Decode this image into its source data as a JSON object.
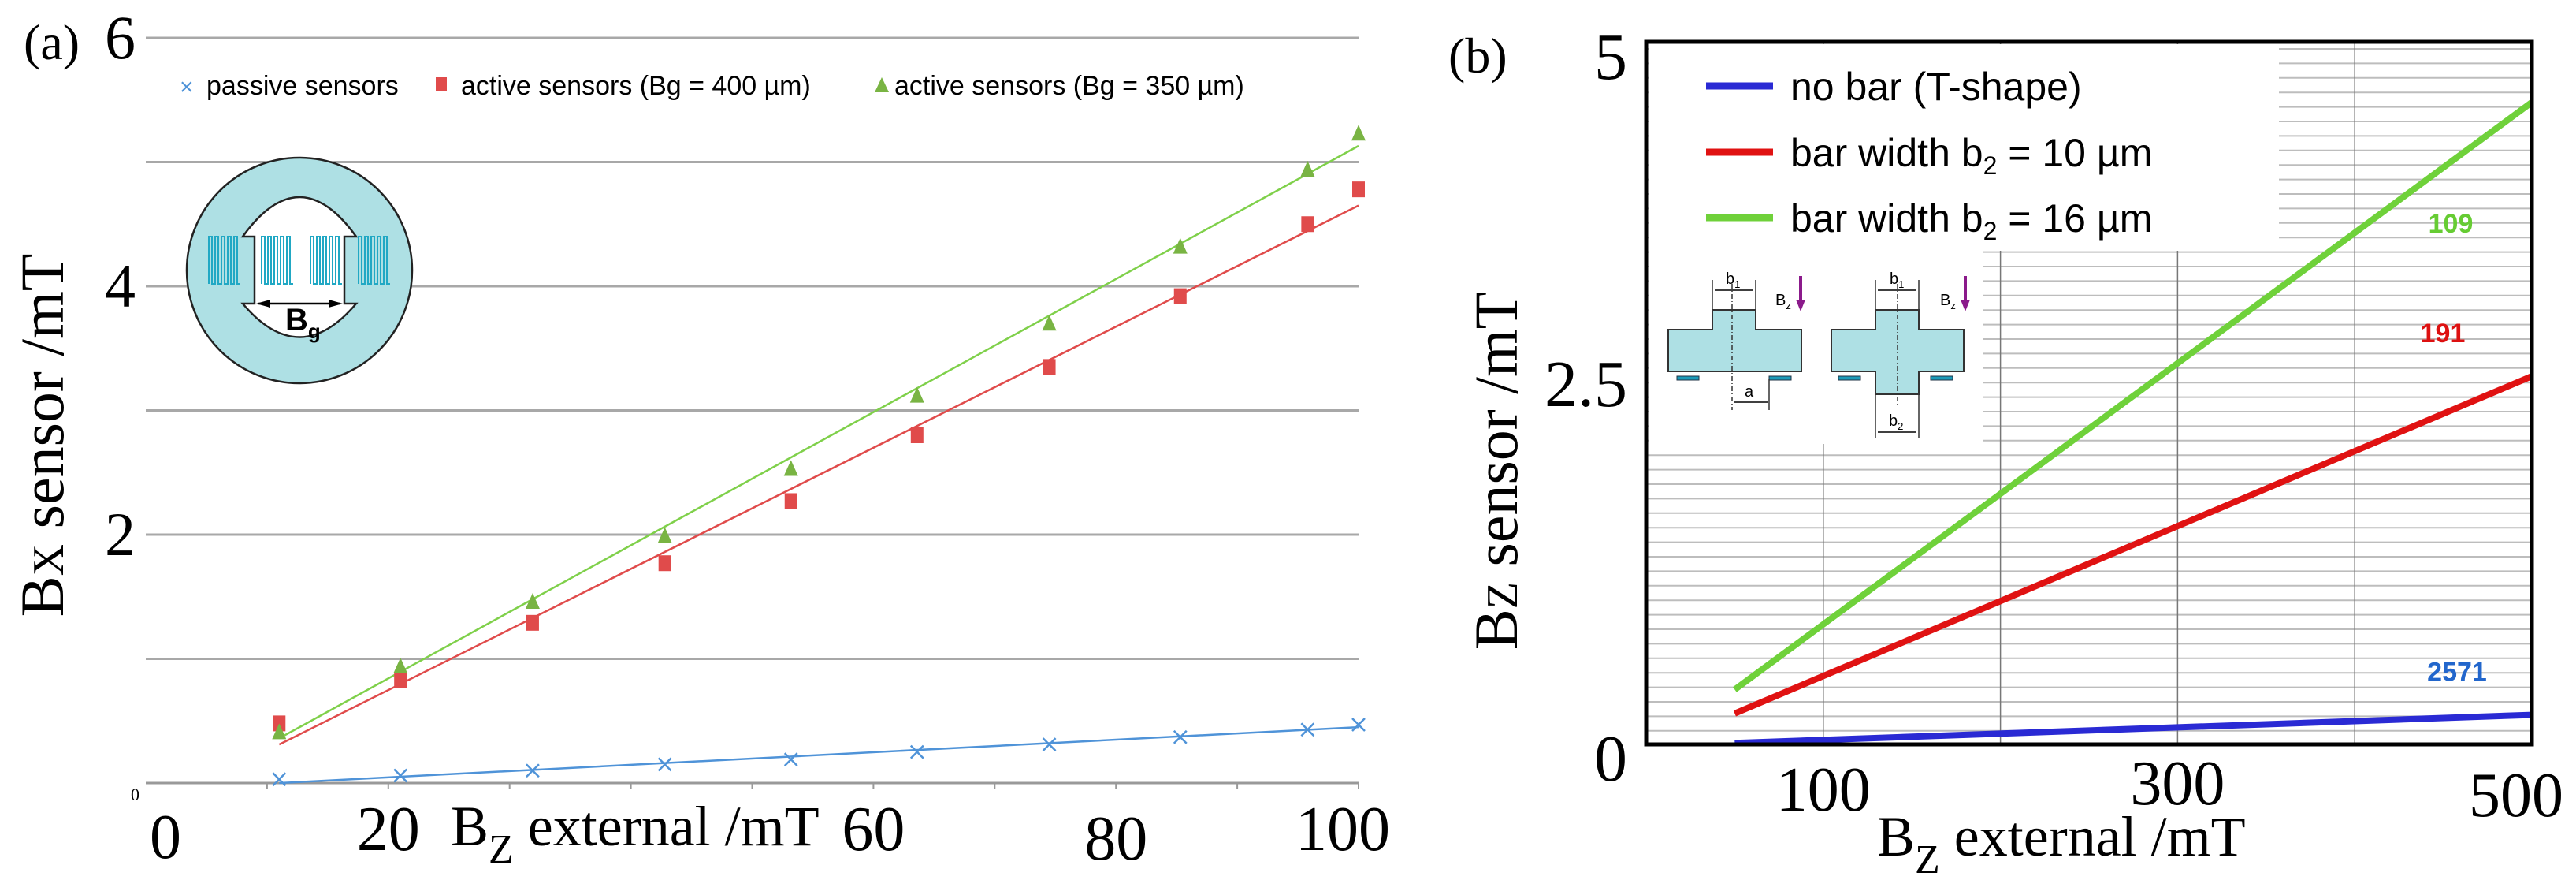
{
  "chart_data": [
    {
      "panel_label": "(a)",
      "type": "scatter",
      "title": "",
      "xlabel_main": "B",
      "xlabel_sub": "Z",
      "xlabel_rest": " external /mT",
      "ylabel_main": "B",
      "ylabel_sub": "X",
      "ylabel_rest": " sensor /mT",
      "xlim": [
        0,
        100
      ],
      "ylim": [
        0,
        6
      ],
      "x_tick_labels": [
        "0",
        "20",
        "60",
        "80",
        "100"
      ],
      "x_tick_values": [
        0,
        20,
        60,
        80,
        100
      ],
      "y_tick_labels": [
        "6",
        "4",
        "2"
      ],
      "y_tick_values": [
        6,
        4,
        2
      ],
      "origin_label": "0",
      "grid": true,
      "legend_placement": "top",
      "x": [
        11,
        21,
        31.9,
        42.8,
        53.2,
        63.6,
        74.5,
        85.3,
        95.8,
        100
      ],
      "series": [
        {
          "name": "passive sensors",
          "marker": "x",
          "color": "#4f93d8",
          "values": [
            0.03,
            0.06,
            0.1,
            0.15,
            0.19,
            0.25,
            0.31,
            0.37,
            0.43,
            0.47
          ],
          "fit": [
            [
              11,
              0.0
            ],
            [
              100,
              0.45
            ]
          ]
        },
        {
          "name": "active sensors (Bg = 400 µm)",
          "marker": "square",
          "color": "#e04b4b",
          "values": [
            0.48,
            0.83,
            1.29,
            1.77,
            2.27,
            2.8,
            3.35,
            3.92,
            4.5,
            4.78
          ],
          "fit": [
            [
              11,
              0.31
            ],
            [
              100,
              4.65
            ]
          ]
        },
        {
          "name": "active sensors (Bg = 350 µm)",
          "marker": "triangle",
          "color": "#79b443",
          "values": [
            0.41,
            0.94,
            1.46,
            1.99,
            2.53,
            3.12,
            3.7,
            4.32,
            4.94,
            5.23
          ],
          "fit": [
            [
              11,
              0.36
            ],
            [
              100,
              5.13
            ]
          ]
        }
      ],
      "inset": {
        "label_main": "B",
        "label_sub": "g"
      }
    },
    {
      "panel_label": "(b)",
      "type": "line",
      "title": "",
      "xlabel_main": "B",
      "xlabel_sub": "Z",
      "xlabel_rest": " external /mT",
      "ylabel_main": "B",
      "ylabel_sub": "Z",
      "ylabel_rest": " sensor /mT",
      "xlim": [
        0,
        500
      ],
      "ylim": [
        0,
        5
      ],
      "x_tick_labels": [
        "100",
        "300",
        "500"
      ],
      "x_tick_values": [
        100,
        300,
        500
      ],
      "y_tick_labels": [
        "5",
        "2.5",
        "0"
      ],
      "y_tick_values": [
        5,
        2.5,
        0
      ],
      "grid": true,
      "legend_placement": "top-left",
      "series": [
        {
          "name": "no bar (T-shape)",
          "color": "#2a2ad4",
          "x": [
            50,
            500
          ],
          "values": [
            0.01,
            0.21
          ],
          "end_label": "2571",
          "end_label_color": "#2266cc"
        },
        {
          "name": "bar width b₂ = 10 µm",
          "name_main": "bar width b",
          "name_sub": "2",
          "name_rest": " = 10 µm",
          "color": "#e01212",
          "x": [
            50,
            500
          ],
          "values": [
            0.22,
            2.62
          ],
          "end_label": "191",
          "end_label_color": "#dd1111"
        },
        {
          "name": "bar width b₂ = 16 µm",
          "name_main": "bar width b",
          "name_sub": "2",
          "name_rest": " = 16 µm",
          "color": "#6fd13a",
          "x": [
            50,
            500
          ],
          "values": [
            0.39,
            4.57
          ],
          "end_label": "109",
          "end_label_color": "#66cc33"
        }
      ],
      "inset": {
        "b1": "b",
        "b1_sub": "1",
        "b2": "b",
        "b2_sub": "2",
        "bz": "B",
        "bz_sub": "z",
        "a": "a"
      }
    }
  ]
}
